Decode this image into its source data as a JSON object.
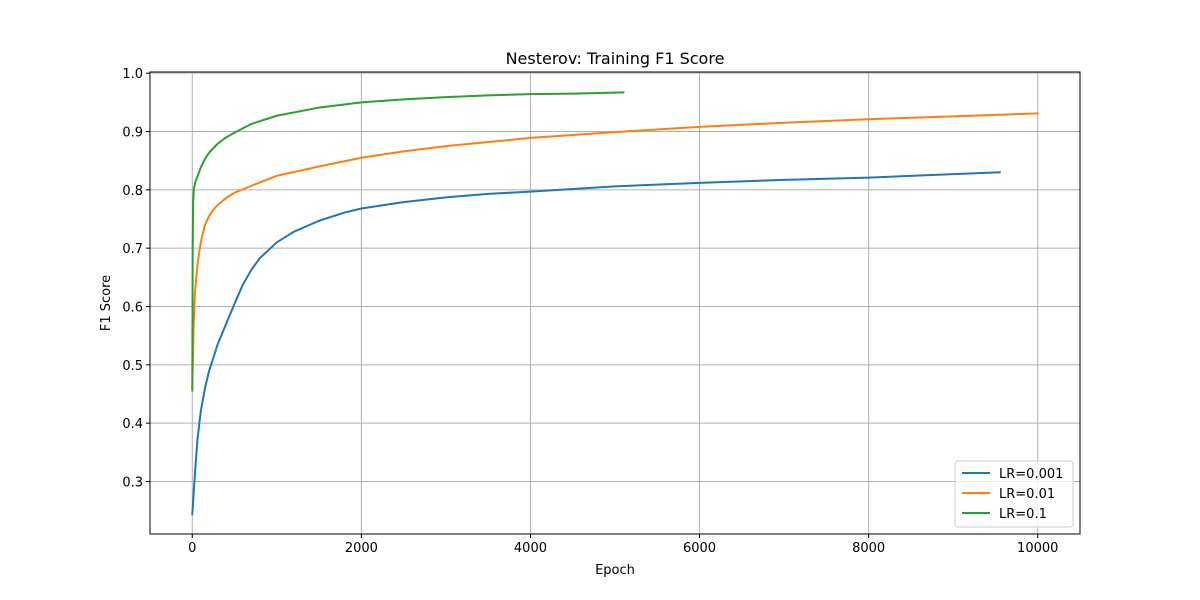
{
  "chart_data": {
    "type": "line",
    "title": "Nesterov: Training F1 Score",
    "xlabel": "Epoch",
    "ylabel": "F1 Score",
    "xlim": [
      -500,
      10500
    ],
    "ylim": [
      0.21,
      1.002
    ],
    "xticks": [
      0,
      2000,
      4000,
      6000,
      8000,
      10000
    ],
    "yticks": [
      0.3,
      0.4,
      0.5,
      0.6,
      0.7,
      0.8,
      0.9,
      1.0
    ],
    "xtick_labels": [
      "0",
      "2000",
      "4000",
      "6000",
      "8000",
      "10000"
    ],
    "ytick_labels": [
      "0.3",
      "0.4",
      "0.5",
      "0.6",
      "0.7",
      "0.8",
      "0.9",
      "1.0"
    ],
    "grid": true,
    "legend_position": "lower-right",
    "series": [
      {
        "name": "LR=0.001",
        "color": "#1f77b4",
        "x": [
          0,
          30,
          60,
          100,
          150,
          200,
          300,
          400,
          500,
          600,
          700,
          800,
          1000,
          1200,
          1500,
          1800,
          2000,
          2500,
          3000,
          3500,
          4000,
          5000,
          6000,
          7000,
          8000,
          9000,
          9550
        ],
        "y": [
          0.244,
          0.31,
          0.37,
          0.42,
          0.46,
          0.49,
          0.535,
          0.57,
          0.605,
          0.638,
          0.663,
          0.683,
          0.71,
          0.728,
          0.747,
          0.761,
          0.768,
          0.779,
          0.787,
          0.793,
          0.797,
          0.806,
          0.812,
          0.817,
          0.821,
          0.827,
          0.83
        ]
      },
      {
        "name": "LR=0.01",
        "color": "#ff7f0e",
        "x": [
          0,
          15,
          30,
          60,
          100,
          150,
          200,
          250,
          300,
          400,
          500,
          700,
          1000,
          1500,
          2000,
          2500,
          3000,
          4000,
          5000,
          6000,
          7000,
          8000,
          9000,
          10000
        ],
        "y": [
          0.46,
          0.56,
          0.62,
          0.67,
          0.71,
          0.74,
          0.755,
          0.766,
          0.774,
          0.786,
          0.795,
          0.807,
          0.824,
          0.84,
          0.855,
          0.866,
          0.875,
          0.889,
          0.899,
          0.908,
          0.915,
          0.921,
          0.926,
          0.931
        ]
      },
      {
        "name": "LR=0.1",
        "color": "#2ca02c",
        "x": [
          0,
          5,
          10,
          20,
          40,
          70,
          100,
          150,
          200,
          300,
          400,
          500,
          700,
          1000,
          1500,
          2000,
          2500,
          3000,
          3500,
          4000,
          4500,
          5100
        ],
        "y": [
          0.456,
          0.7,
          0.78,
          0.803,
          0.815,
          0.826,
          0.838,
          0.853,
          0.864,
          0.879,
          0.89,
          0.898,
          0.913,
          0.927,
          0.941,
          0.95,
          0.955,
          0.959,
          0.962,
          0.964,
          0.965,
          0.967
        ]
      }
    ]
  }
}
